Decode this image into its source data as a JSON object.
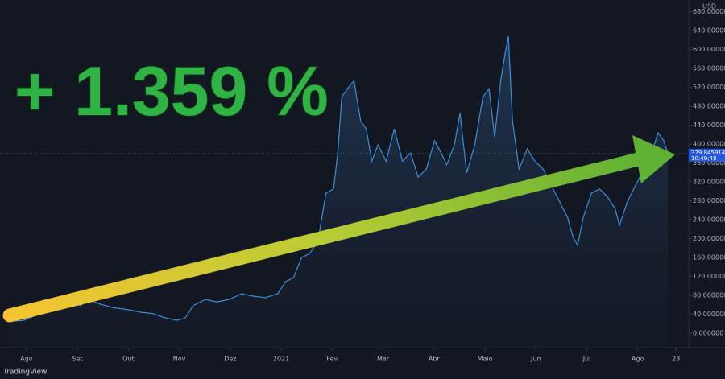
{
  "chart_data": {
    "type": "area",
    "annotation": "+ 1.359 %",
    "currency": "USD",
    "last_time": "10:49:48",
    "brand": "TradingView",
    "color": "#3a8fd9",
    "x": [
      -0.36,
      -0.05,
      0.27,
      0.58,
      0.9,
      1.06,
      1.22,
      1.45,
      1.69,
      2.01,
      2.24,
      2.48,
      2.72,
      2.95,
      3.11,
      3.27,
      3.51,
      3.74,
      3.98,
      4.22,
      4.45,
      4.69,
      4.93,
      5.09,
      5.24,
      5.4,
      5.56,
      5.72,
      5.8,
      5.88,
      6.03,
      6.11,
      6.19,
      6.3,
      6.43,
      6.56,
      6.67,
      6.78,
      6.9,
      7.06,
      7.22,
      7.38,
      7.54,
      7.69,
      7.85,
      8.01,
      8.14,
      8.25,
      8.4,
      8.51,
      8.64,
      8.8,
      8.96,
      9.08,
      9.19,
      9.31,
      9.4,
      9.46,
      9.54,
      9.67,
      9.83,
      9.98,
      10.14,
      10.3,
      10.46,
      10.62,
      10.73,
      10.82,
      10.93,
      11.09,
      11.25,
      11.41,
      11.56,
      11.64,
      11.8,
      11.96,
      12.12,
      12.27,
      12.4,
      12.51,
      12.59
    ],
    "values": [
      24,
      27,
      41,
      49,
      66,
      58,
      71,
      61,
      54,
      49,
      44,
      41,
      32,
      27,
      31,
      58,
      71,
      66,
      71,
      83,
      78,
      75,
      83,
      109,
      117,
      160,
      168,
      194,
      245,
      296,
      305,
      381,
      500,
      517,
      534,
      449,
      432,
      364,
      398,
      364,
      432,
      364,
      381,
      330,
      347,
      407,
      381,
      356,
      398,
      466,
      339,
      398,
      500,
      517,
      415,
      534,
      594,
      628,
      449,
      347,
      390,
      364,
      347,
      313,
      279,
      245,
      203,
      186,
      245,
      296,
      305,
      288,
      262,
      228,
      279,
      313,
      347,
      381,
      424,
      407,
      379.845914
    ],
    "xlim": [
      -0.52,
      13
    ],
    "xticks": [
      {
        "value": 0,
        "label": "Ago"
      },
      {
        "value": 1,
        "label": "Set"
      },
      {
        "value": 2,
        "label": "Out"
      },
      {
        "value": 3,
        "label": "Nov"
      },
      {
        "value": 4,
        "label": "Dez"
      },
      {
        "value": 5,
        "label": "2021"
      },
      {
        "value": 6,
        "label": "Fev"
      },
      {
        "value": 7,
        "label": "Mar"
      },
      {
        "value": 8,
        "label": "Abr"
      },
      {
        "value": 9,
        "label": "Maio"
      },
      {
        "value": 10,
        "label": "Jun"
      },
      {
        "value": 11,
        "label": "Jul"
      },
      {
        "value": 12,
        "label": "Ago"
      },
      {
        "value": 12.75,
        "label": "23"
      }
    ],
    "ylim": [
      -31,
      705
    ],
    "yticks": [
      {
        "value": 0,
        "label": "0.000000"
      },
      {
        "value": 40,
        "label": "40.000000"
      },
      {
        "value": 80,
        "label": "80.000000"
      },
      {
        "value": 120,
        "label": "120.000000"
      },
      {
        "value": 160,
        "label": "160.000000"
      },
      {
        "value": 200,
        "label": "200.000000"
      },
      {
        "value": 240,
        "label": "240.000000"
      },
      {
        "value": 280,
        "label": "280.000000"
      },
      {
        "value": 320,
        "label": "320.000000"
      },
      {
        "value": 360,
        "label": "360.000000"
      },
      {
        "value": 400,
        "label": "400.000000"
      },
      {
        "value": 440,
        "label": "440.000000"
      },
      {
        "value": 480,
        "label": "480.000000"
      },
      {
        "value": 520,
        "label": "520.000000"
      },
      {
        "value": 560,
        "label": "560.000000"
      },
      {
        "value": 600,
        "label": "600.000000"
      },
      {
        "value": 640,
        "label": "640.000000"
      },
      {
        "value": 680,
        "label": "680.000000"
      }
    ]
  }
}
